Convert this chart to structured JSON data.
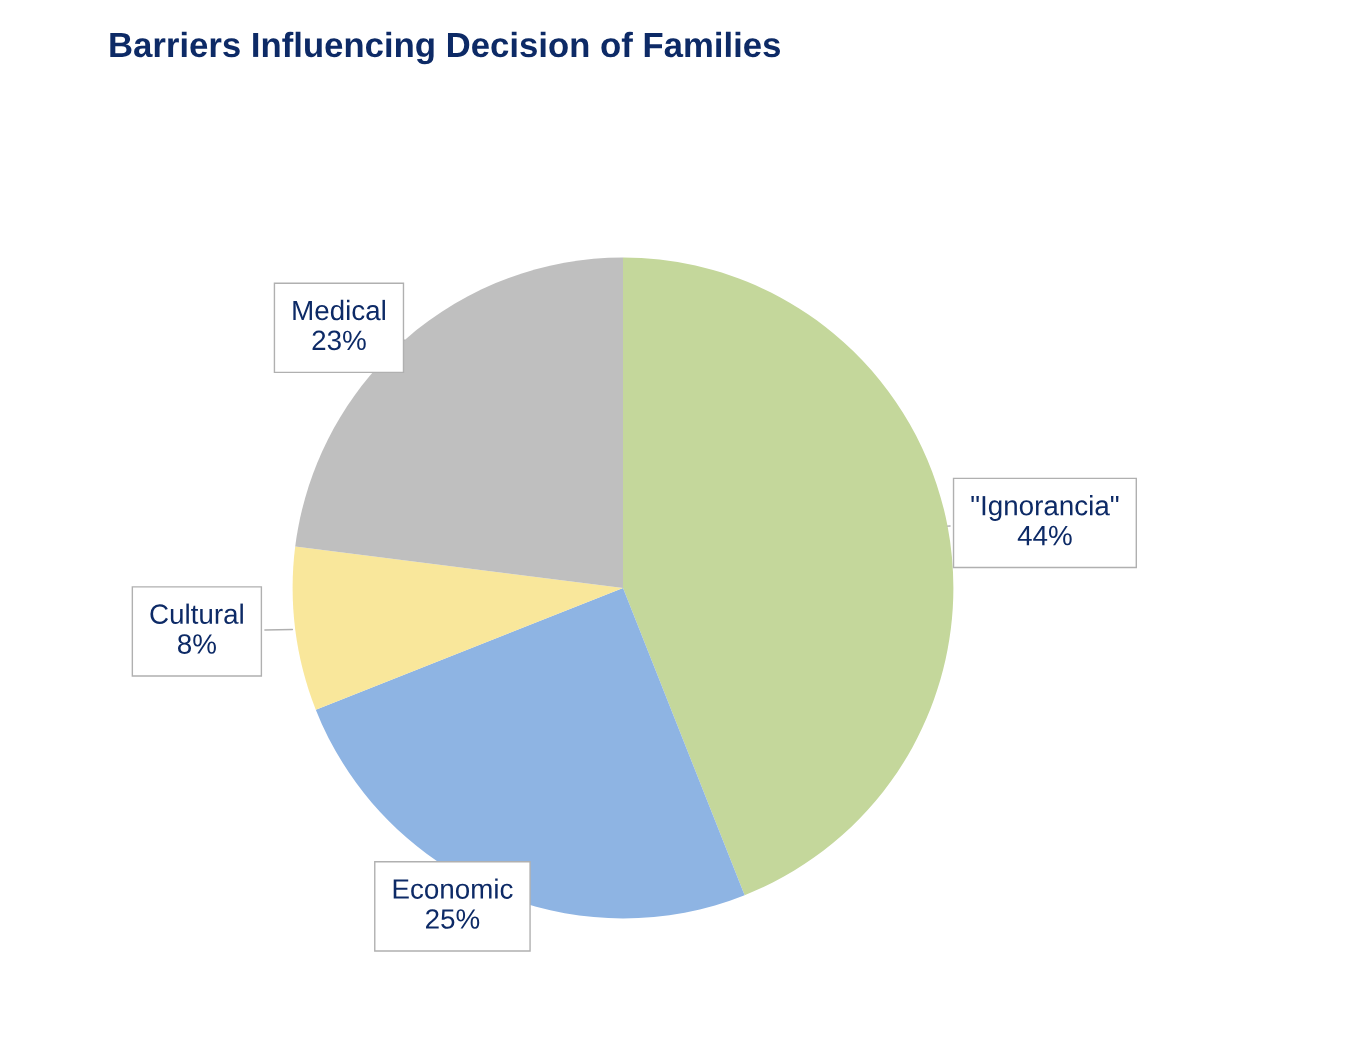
{
  "chart_data": {
    "type": "pie",
    "title": "Barriers Influencing Decision of Families",
    "categories": [
      "\"Ignorancia\"",
      "Economic",
      "Cultural",
      "Medical"
    ],
    "values": [
      44,
      25,
      8,
      23
    ],
    "colors": [
      "#c4d79b",
      "#8eb4e3",
      "#f9e79b",
      "#bfbfbf"
    ],
    "value_labels": [
      "44%",
      "25%",
      "8%",
      "23%"
    ],
    "legend": false
  }
}
